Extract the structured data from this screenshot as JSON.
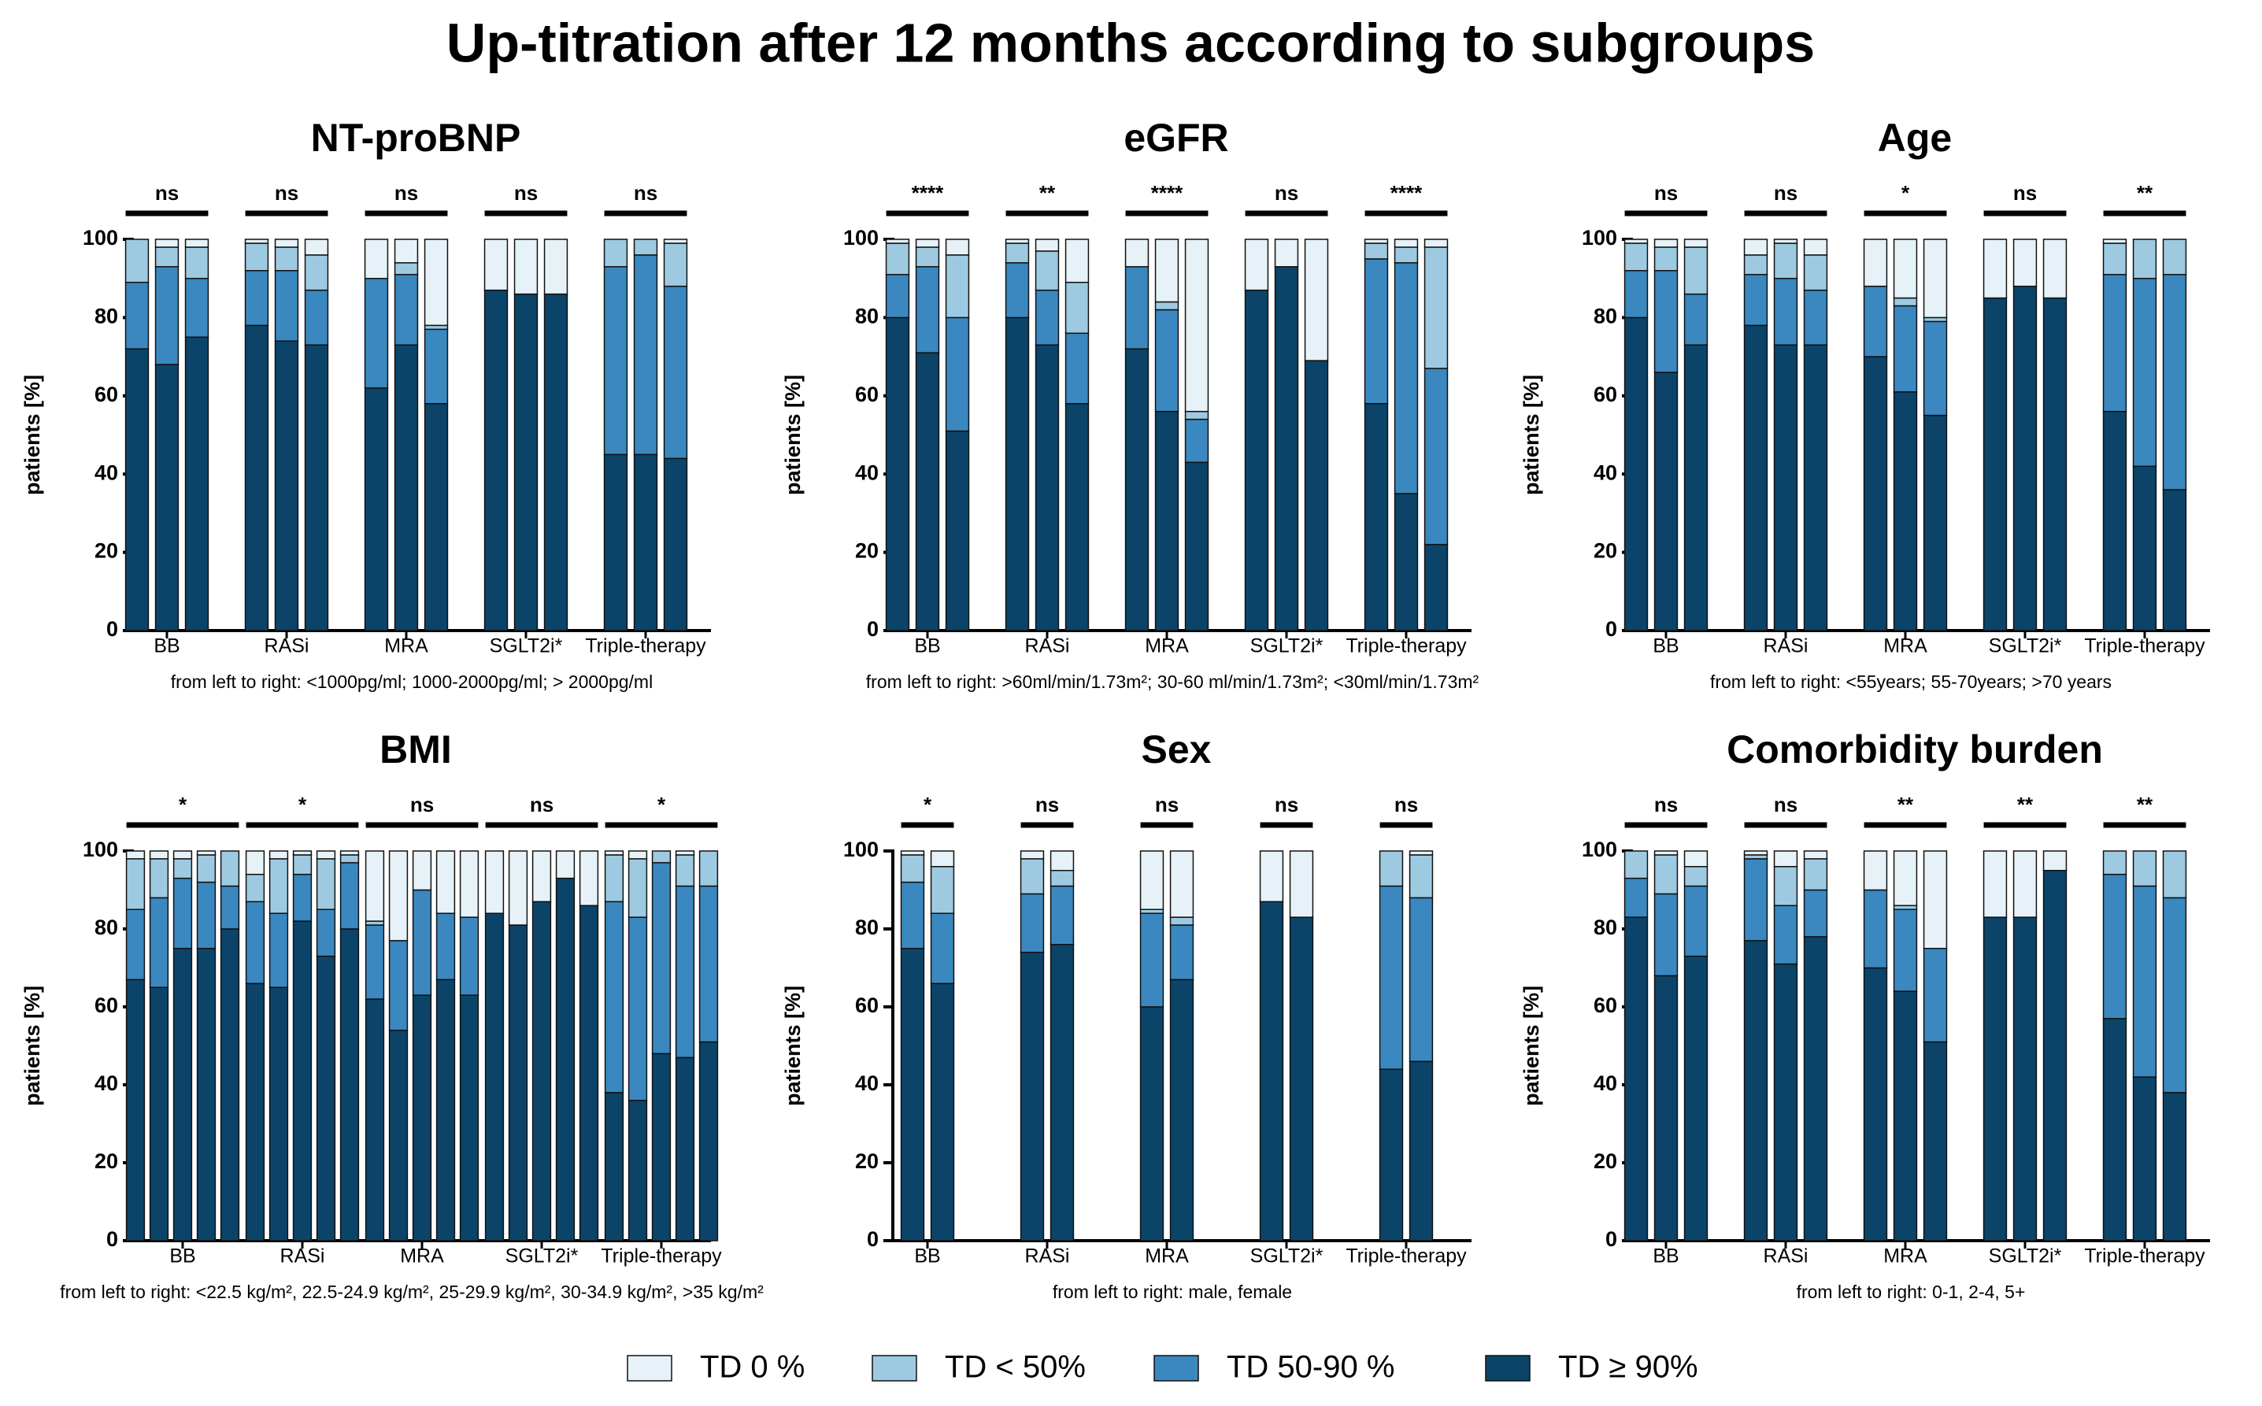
{
  "title": "Up-titration after 12 months according to subgroups",
  "legend": [
    {
      "name": "TD 0 %",
      "color": "#e6f2f8"
    },
    {
      "name": "TD < 50%",
      "color": "#9ecae1"
    },
    {
      "name": "TD 50-90 %",
      "color": "#3a88bf"
    },
    {
      "name": "TD ≥  90%",
      "color": "#0b4468"
    }
  ],
  "chart_data": [
    {
      "type": "stacked-bar",
      "title": "NT-proBNP",
      "ylabel": "patients [%]",
      "categories": [
        "BB",
        "RASi",
        "MRA",
        "SGLT2i*",
        "Triple-therapy"
      ],
      "significance": [
        "ns",
        "ns",
        "ns",
        "ns",
        "ns"
      ],
      "note": "from left to right: <1000pg/ml; 1000-2000pg/ml; > 2000pg/ml",
      "ylim": [
        0,
        100
      ],
      "yticks": [
        0,
        20,
        40,
        60,
        80,
        100
      ],
      "series": [
        {
          "values": [
            [
              0,
              2,
              2
            ],
            [
              1,
              2,
              4
            ],
            [
              10,
              6,
              22
            ],
            [
              13,
              14,
              14
            ],
            [
              0,
              0,
              1
            ]
          ]
        },
        {
          "values": [
            [
              11,
              5,
              8
            ],
            [
              7,
              6,
              9
            ],
            [
              0,
              3,
              1
            ],
            [
              0,
              0,
              0
            ],
            [
              7,
              4,
              11
            ]
          ]
        },
        {
          "values": [
            [
              17,
              25,
              15
            ],
            [
              14,
              18,
              14
            ],
            [
              28,
              18,
              19
            ],
            [
              0,
              0,
              0
            ],
            [
              48,
              51,
              44
            ]
          ]
        },
        {
          "values": [
            [
              72,
              68,
              75
            ],
            [
              78,
              74,
              73
            ],
            [
              62,
              73,
              58
            ],
            [
              87,
              86,
              86
            ],
            [
              45,
              45,
              44
            ]
          ]
        }
      ]
    },
    {
      "type": "stacked-bar",
      "title": "eGFR",
      "ylabel": "patients [%]",
      "categories": [
        "BB",
        "RASi",
        "MRA",
        "SGLT2i*",
        "Triple-therapy"
      ],
      "significance": [
        "****",
        "**",
        "****",
        "ns",
        "****"
      ],
      "note": "from left to right: >60ml/min/1.73m²; 30-60 ml/min/1.73m²; <30ml/min/1.73m²",
      "ylim": [
        0,
        100
      ],
      "yticks": [
        0,
        20,
        40,
        60,
        80,
        100
      ],
      "series": [
        {
          "values": [
            [
              1,
              2,
              4
            ],
            [
              1,
              3,
              11
            ],
            [
              7,
              16,
              44
            ],
            [
              13,
              7,
              31
            ],
            [
              1,
              2,
              2
            ]
          ]
        },
        {
          "values": [
            [
              8,
              5,
              16
            ],
            [
              5,
              10,
              13
            ],
            [
              0,
              2,
              2
            ],
            [
              0,
              0,
              0
            ],
            [
              4,
              4,
              31
            ]
          ]
        },
        {
          "values": [
            [
              11,
              22,
              29
            ],
            [
              14,
              14,
              18
            ],
            [
              21,
              26,
              11
            ],
            [
              0,
              0,
              0
            ],
            [
              37,
              59,
              45
            ]
          ]
        },
        {
          "values": [
            [
              80,
              71,
              51
            ],
            [
              80,
              73,
              58
            ],
            [
              72,
              56,
              43
            ],
            [
              87,
              93,
              69
            ],
            [
              58,
              35,
              22
            ]
          ]
        }
      ]
    },
    {
      "type": "stacked-bar",
      "title": "Age",
      "ylabel": "patients [%]",
      "categories": [
        "BB",
        "RASi",
        "MRA",
        "SGLT2i*",
        "Triple-therapy"
      ],
      "significance": [
        "ns",
        "ns",
        "*",
        "ns",
        "**"
      ],
      "note": "from left to right: <55years; 55-70years; >70 years",
      "ylim": [
        0,
        100
      ],
      "yticks": [
        0,
        20,
        40,
        60,
        80,
        100
      ],
      "series": [
        {
          "values": [
            [
              1,
              2,
              2
            ],
            [
              4,
              1,
              4
            ],
            [
              12,
              15,
              20
            ],
            [
              15,
              12,
              15
            ],
            [
              1,
              0,
              0
            ]
          ]
        },
        {
          "values": [
            [
              7,
              6,
              12
            ],
            [
              5,
              9,
              9
            ],
            [
              0,
              2,
              1
            ],
            [
              0,
              0,
              0
            ],
            [
              8,
              10,
              9
            ]
          ]
        },
        {
          "values": [
            [
              12,
              26,
              13
            ],
            [
              13,
              17,
              14
            ],
            [
              18,
              22,
              24
            ],
            [
              0,
              0,
              0
            ],
            [
              35,
              48,
              55
            ]
          ]
        },
        {
          "values": [
            [
              80,
              66,
              73
            ],
            [
              78,
              73,
              73
            ],
            [
              70,
              61,
              55
            ],
            [
              85,
              88,
              85
            ],
            [
              56,
              42,
              36
            ]
          ]
        }
      ]
    },
    {
      "type": "stacked-bar",
      "title": "BMI",
      "ylabel": "patients [%]",
      "categories": [
        "BB",
        "RASi",
        "MRA",
        "SGLT2i*",
        "Triple-therapy"
      ],
      "significance": [
        "*",
        "*",
        "ns",
        "ns",
        "*"
      ],
      "note": "from left to right: <22.5 kg/m², 22.5-24.9 kg/m², 25-29.9 kg/m², 30-34.9 kg/m², >35 kg/m²",
      "ylim": [
        0,
        100
      ],
      "yticks": [
        0,
        20,
        40,
        60,
        80,
        100
      ],
      "series": [
        {
          "values": [
            [
              2,
              2,
              2,
              1,
              0
            ],
            [
              6,
              2,
              1,
              2,
              1
            ],
            [
              18,
              23,
              10,
              16,
              17
            ],
            [
              16,
              19,
              13,
              7,
              14
            ],
            [
              1,
              2,
              0,
              1,
              0
            ]
          ]
        },
        {
          "values": [
            [
              13,
              10,
              5,
              7,
              9
            ],
            [
              7,
              14,
              5,
              13,
              2
            ],
            [
              1,
              0,
              0,
              0,
              0
            ],
            [
              0,
              0,
              0,
              0,
              0
            ],
            [
              12,
              15,
              3,
              8,
              9
            ]
          ]
        },
        {
          "values": [
            [
              18,
              23,
              18,
              17,
              11
            ],
            [
              21,
              19,
              12,
              12,
              17
            ],
            [
              19,
              23,
              27,
              17,
              20
            ],
            [
              0,
              0,
              0,
              0,
              0
            ],
            [
              49,
              47,
              49,
              44,
              40
            ]
          ]
        },
        {
          "values": [
            [
              67,
              65,
              75,
              75,
              80
            ],
            [
              66,
              65,
              82,
              73,
              80
            ],
            [
              62,
              54,
              63,
              67,
              63
            ],
            [
              84,
              81,
              87,
              93,
              86
            ],
            [
              38,
              36,
              48,
              47,
              51
            ]
          ]
        }
      ]
    },
    {
      "type": "stacked-bar",
      "title": "Sex",
      "ylabel": "patients [%]",
      "categories": [
        "BB",
        "RASi",
        "MRA",
        "SGLT2i*",
        "Triple-therapy"
      ],
      "significance": [
        "*",
        "ns",
        "ns",
        "ns",
        "ns"
      ],
      "note": "from left to right: male, female",
      "ylim": [
        0,
        100
      ],
      "yticks": [
        0,
        20,
        40,
        60,
        80,
        100
      ],
      "series": [
        {
          "values": [
            [
              1,
              4
            ],
            [
              2,
              5
            ],
            [
              15,
              17
            ],
            [
              13,
              17
            ],
            [
              0,
              1
            ]
          ]
        },
        {
          "values": [
            [
              7,
              12
            ],
            [
              9,
              4
            ],
            [
              1,
              2
            ],
            [
              0,
              0
            ],
            [
              9,
              11
            ]
          ]
        },
        {
          "values": [
            [
              17,
              18
            ],
            [
              15,
              15
            ],
            [
              24,
              14
            ],
            [
              0,
              0
            ],
            [
              47,
              42
            ]
          ]
        },
        {
          "values": [
            [
              75,
              66
            ],
            [
              74,
              76
            ],
            [
              60,
              67
            ],
            [
              87,
              83
            ],
            [
              44,
              46
            ]
          ]
        }
      ]
    },
    {
      "type": "stacked-bar",
      "title": "Comorbidity burden",
      "ylabel": "patients [%]",
      "categories": [
        "BB",
        "RASi",
        "MRA",
        "SGLT2i*",
        "Triple-therapy"
      ],
      "significance": [
        "ns",
        "ns",
        "**",
        "**",
        "**"
      ],
      "note": "from left to right: 0-1, 2-4, 5+",
      "ylim": [
        0,
        100
      ],
      "yticks": [
        0,
        20,
        40,
        60,
        80,
        100
      ],
      "series": [
        {
          "values": [
            [
              0,
              1,
              4
            ],
            [
              1,
              4,
              2
            ],
            [
              10,
              14,
              25
            ],
            [
              17,
              17,
              5
            ],
            [
              0,
              0,
              0
            ]
          ]
        },
        {
          "values": [
            [
              7,
              10,
              5
            ],
            [
              1,
              10,
              8
            ],
            [
              0,
              1,
              0
            ],
            [
              0,
              0,
              0
            ],
            [
              6,
              9,
              12
            ]
          ]
        },
        {
          "values": [
            [
              10,
              21,
              18
            ],
            [
              21,
              15,
              12
            ],
            [
              20,
              21,
              24
            ],
            [
              0,
              0,
              0
            ],
            [
              37,
              49,
              50
            ]
          ]
        },
        {
          "values": [
            [
              83,
              68,
              73
            ],
            [
              77,
              71,
              78
            ],
            [
              70,
              64,
              51
            ],
            [
              83,
              83,
              95
            ],
            [
              57,
              42,
              38
            ]
          ]
        }
      ]
    }
  ]
}
